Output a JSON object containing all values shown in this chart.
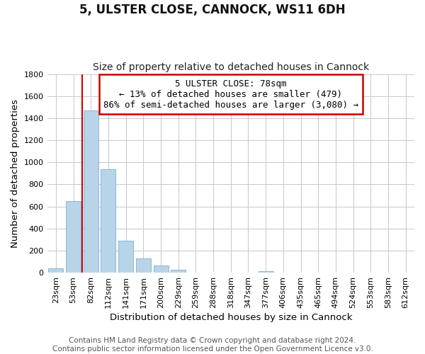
{
  "title": "5, ULSTER CLOSE, CANNOCK, WS11 6DH",
  "subtitle": "Size of property relative to detached houses in Cannock",
  "xlabel": "Distribution of detached houses by size in Cannock",
  "ylabel": "Number of detached properties",
  "footer_line1": "Contains HM Land Registry data © Crown copyright and database right 2024.",
  "footer_line2": "Contains public sector information licensed under the Open Government Licence v3.0.",
  "categories": [
    "23sqm",
    "53sqm",
    "82sqm",
    "112sqm",
    "141sqm",
    "171sqm",
    "200sqm",
    "229sqm",
    "259sqm",
    "288sqm",
    "318sqm",
    "347sqm",
    "377sqm",
    "406sqm",
    "435sqm",
    "465sqm",
    "494sqm",
    "524sqm",
    "553sqm",
    "583sqm",
    "612sqm"
  ],
  "values": [
    40,
    650,
    1470,
    940,
    290,
    130,
    65,
    25,
    0,
    0,
    0,
    0,
    15,
    0,
    0,
    0,
    0,
    0,
    0,
    0,
    0
  ],
  "bar_color": "#b8d4e8",
  "bar_edge_color": "#7bafd4",
  "property_line_x": 2,
  "annotation_line1": "5 ULSTER CLOSE: 78sqm",
  "annotation_line2": "← 13% of detached houses are smaller (479)",
  "annotation_line3": "86% of semi-detached houses are larger (3,080) →",
  "annotation_box_color": "#cc0000",
  "ylim": [
    0,
    1800
  ],
  "yticks": [
    0,
    200,
    400,
    600,
    800,
    1000,
    1200,
    1400,
    1600,
    1800
  ],
  "grid_color": "#c8c8c8",
  "title_fontsize": 12,
  "subtitle_fontsize": 10,
  "axis_label_fontsize": 9.5,
  "tick_fontsize": 8,
  "footer_fontsize": 7.5,
  "annot_fontsize": 9
}
